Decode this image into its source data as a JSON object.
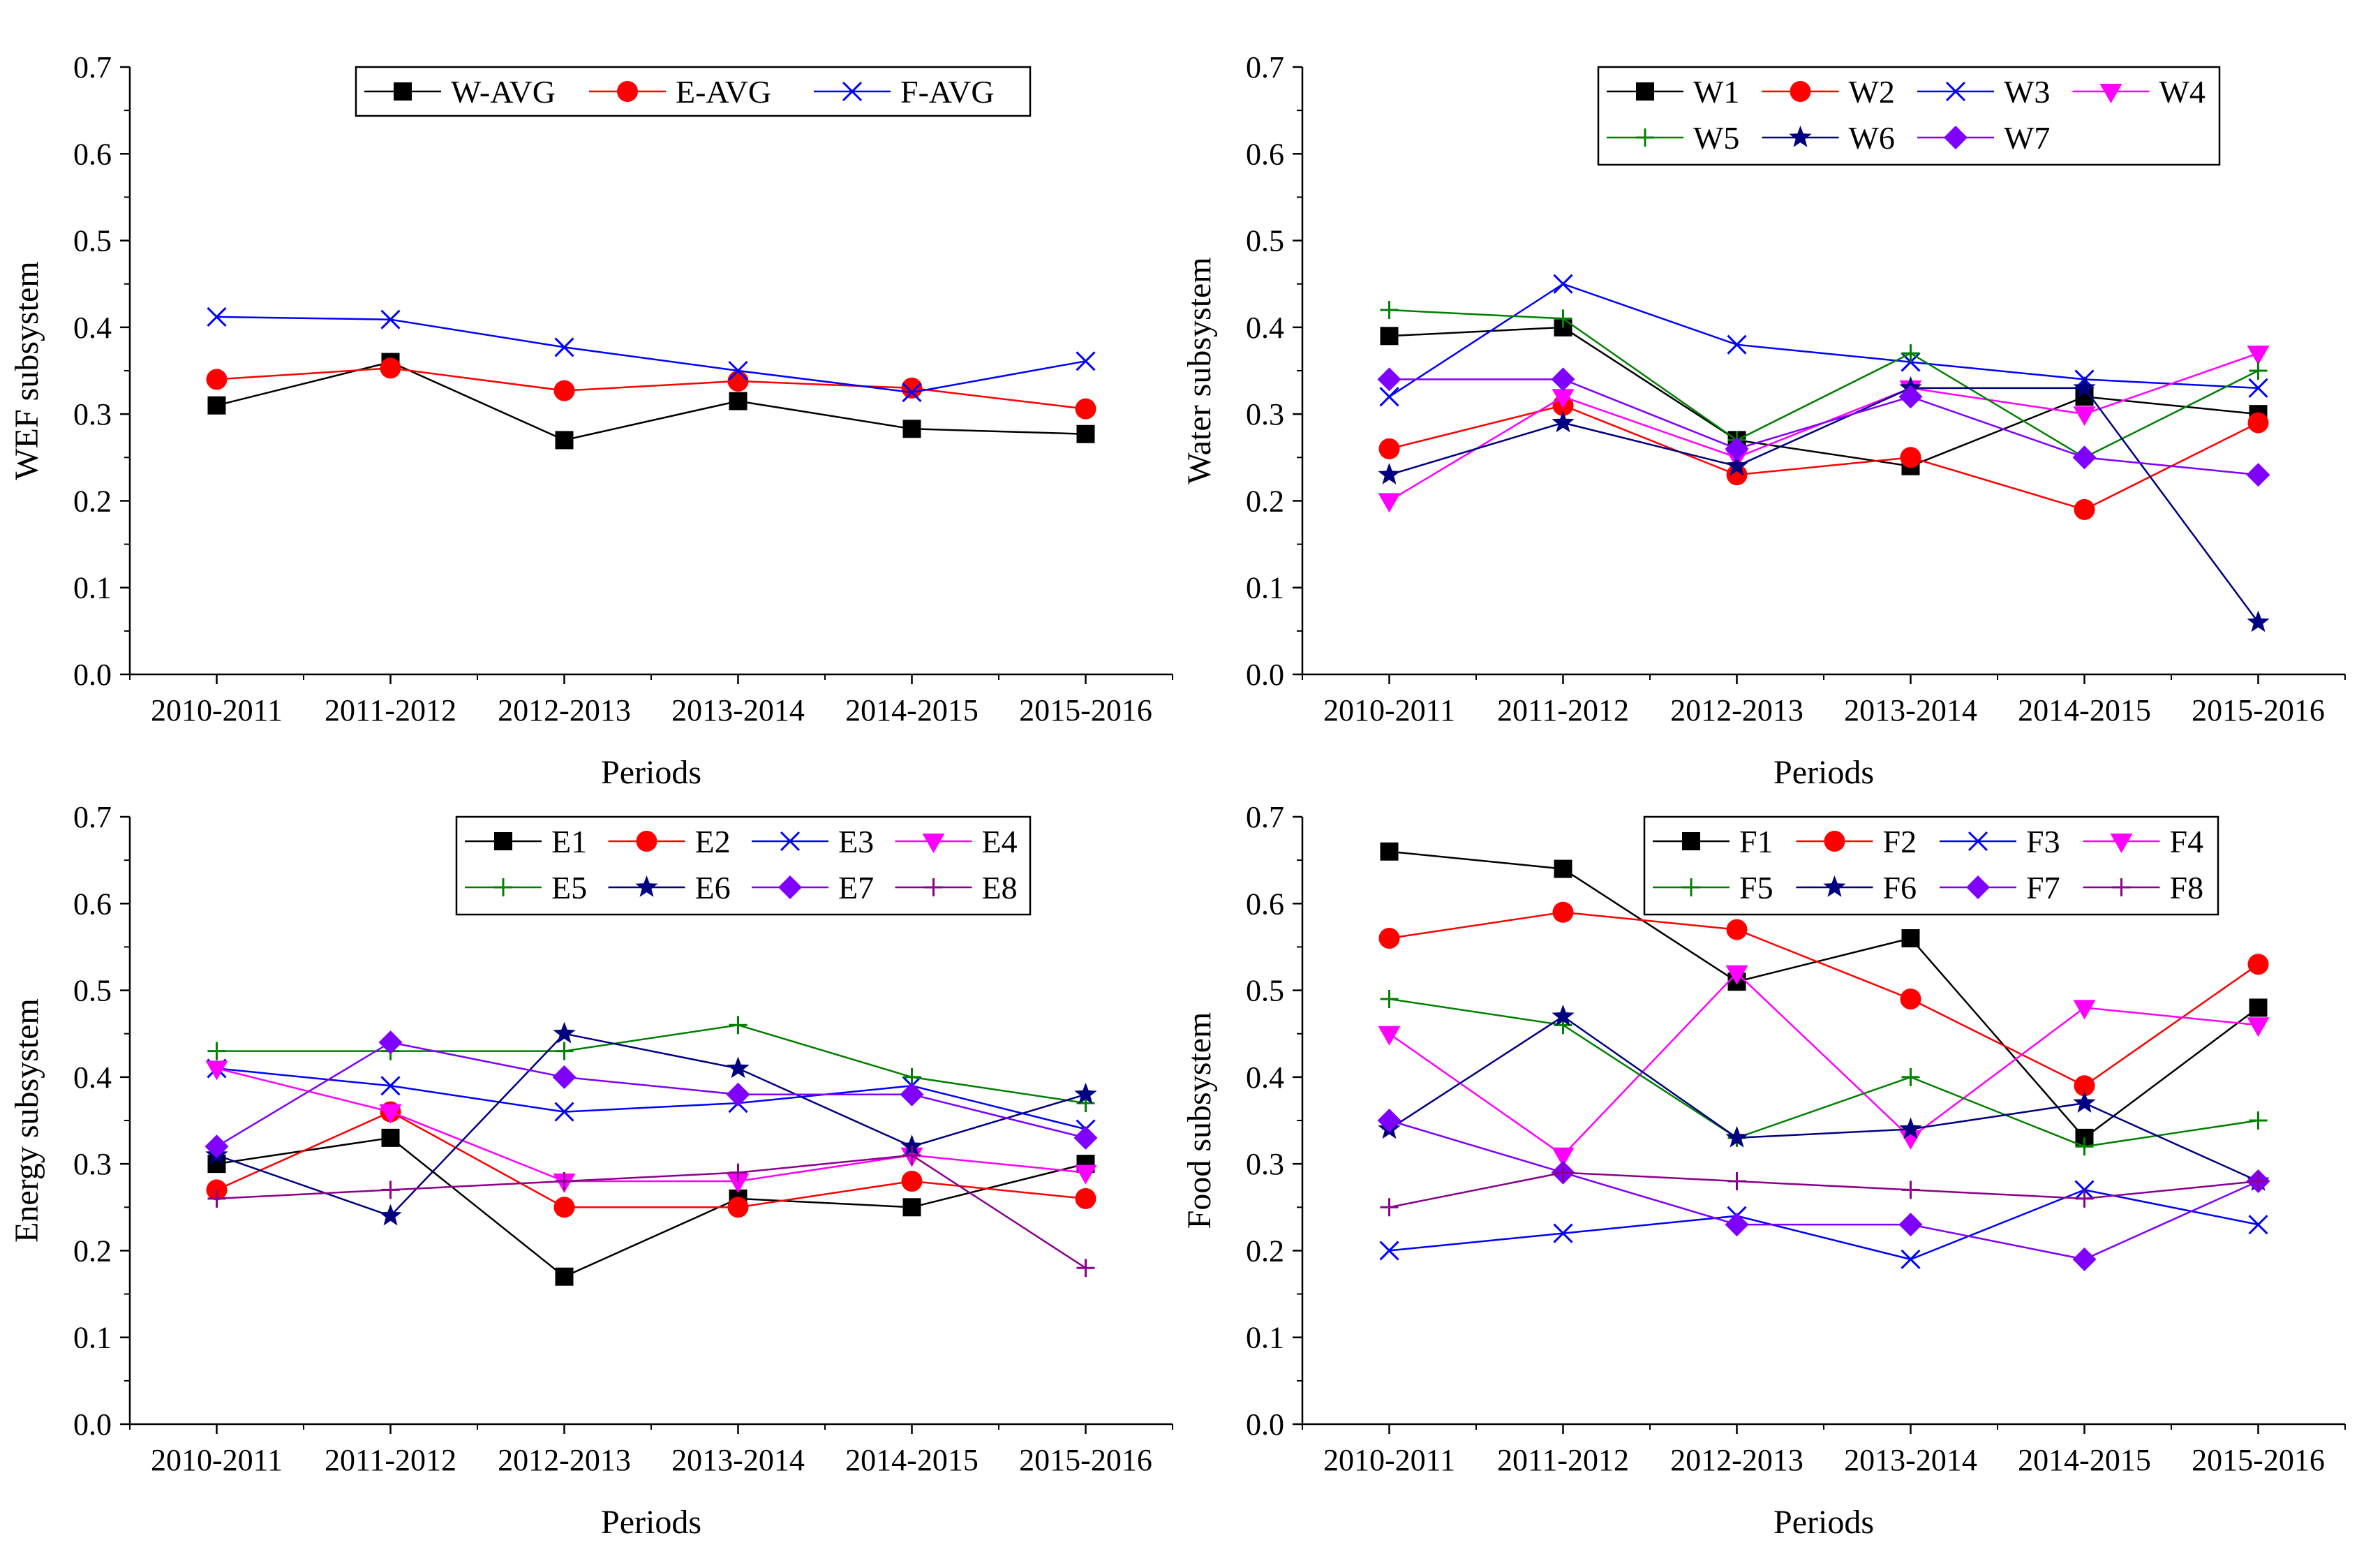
{
  "figure": {
    "colors": {
      "black": "#000000",
      "red": "#ff0000",
      "blue": "#0000ff",
      "magenta": "#ff00ff",
      "green": "#008000",
      "navy": "#000080",
      "purple": "#8000ff",
      "plum": "#8b008b"
    }
  },
  "chart_data": [
    {
      "id": "wef",
      "type": "line",
      "title": "",
      "xlabel": "Periods",
      "ylabel": "WEF subsystem",
      "categories": [
        "2010-2011",
        "2011-2012",
        "2012-2013",
        "2013-2014",
        "2014-2015",
        "2015-2016"
      ],
      "ylim": [
        0,
        0.7
      ],
      "yticks": [
        "0.0",
        "0.1",
        "0.2",
        "0.3",
        "0.4",
        "0.5",
        "0.6",
        "0.7"
      ],
      "legend_columns": 3,
      "series": [
        {
          "name": "W-AVG",
          "values": [
            0.31,
            0.36,
            0.27,
            0.315,
            0.283,
            0.277
          ],
          "color": "#000000",
          "marker": "square"
        },
        {
          "name": "E-AVG",
          "values": [
            0.34,
            0.353,
            0.327,
            0.338,
            0.33,
            0.306
          ],
          "color": "#ff0000",
          "marker": "circle"
        },
        {
          "name": "F-AVG",
          "values": [
            0.412,
            0.409,
            0.377,
            0.35,
            0.325,
            0.361
          ],
          "color": "#0000ff",
          "marker": "x"
        }
      ]
    },
    {
      "id": "water",
      "type": "line",
      "title": "",
      "xlabel": "Periods",
      "ylabel": "Water subsystem",
      "categories": [
        "2010-2011",
        "2011-2012",
        "2012-2013",
        "2013-2014",
        "2014-2015",
        "2015-2016"
      ],
      "ylim": [
        0,
        0.7
      ],
      "yticks": [
        "0.0",
        "0.1",
        "0.2",
        "0.3",
        "0.4",
        "0.5",
        "0.6",
        "0.7"
      ],
      "legend_columns": 4,
      "series": [
        {
          "name": "W1",
          "values": [
            0.39,
            0.4,
            0.27,
            0.24,
            0.32,
            0.3
          ],
          "color": "#000000",
          "marker": "square"
        },
        {
          "name": "W2",
          "values": [
            0.26,
            0.31,
            0.23,
            0.25,
            0.19,
            0.29
          ],
          "color": "#ff0000",
          "marker": "circle"
        },
        {
          "name": "W3",
          "values": [
            0.32,
            0.45,
            0.38,
            0.36,
            0.34,
            0.33
          ],
          "color": "#0000ff",
          "marker": "x"
        },
        {
          "name": "W4",
          "values": [
            0.2,
            0.32,
            0.25,
            0.33,
            0.3,
            0.37
          ],
          "color": "#ff00ff",
          "marker": "triangle-down"
        },
        {
          "name": "W5",
          "values": [
            0.42,
            0.41,
            0.27,
            0.37,
            0.25,
            0.35
          ],
          "color": "#008000",
          "marker": "plus"
        },
        {
          "name": "W6",
          "values": [
            0.23,
            0.29,
            0.24,
            0.33,
            0.33,
            0.06
          ],
          "color": "#000080",
          "marker": "star"
        },
        {
          "name": "W7",
          "values": [
            0.34,
            0.34,
            0.26,
            0.32,
            0.25,
            0.23
          ],
          "color": "#8000ff",
          "marker": "diamond"
        }
      ]
    },
    {
      "id": "energy",
      "type": "line",
      "title": "",
      "xlabel": "Periods",
      "ylabel": "Energy subsystem",
      "categories": [
        "2010-2011",
        "2011-2012",
        "2012-2013",
        "2013-2014",
        "2014-2015",
        "2015-2016"
      ],
      "ylim": [
        0,
        0.7
      ],
      "yticks": [
        "0.0",
        "0.1",
        "0.2",
        "0.3",
        "0.4",
        "0.5",
        "0.6",
        "0.7"
      ],
      "legend_columns": 4,
      "series": [
        {
          "name": "E1",
          "values": [
            0.3,
            0.33,
            0.17,
            0.26,
            0.25,
            0.3
          ],
          "color": "#000000",
          "marker": "square"
        },
        {
          "name": "E2",
          "values": [
            0.27,
            0.36,
            0.25,
            0.25,
            0.28,
            0.26
          ],
          "color": "#ff0000",
          "marker": "circle"
        },
        {
          "name": "E3",
          "values": [
            0.41,
            0.39,
            0.36,
            0.37,
            0.39,
            0.34
          ],
          "color": "#0000ff",
          "marker": "x"
        },
        {
          "name": "E4",
          "values": [
            0.41,
            0.36,
            0.28,
            0.28,
            0.31,
            0.29
          ],
          "color": "#ff00ff",
          "marker": "triangle-down"
        },
        {
          "name": "E5",
          "values": [
            0.43,
            0.43,
            0.43,
            0.46,
            0.4,
            0.37
          ],
          "color": "#008000",
          "marker": "plus"
        },
        {
          "name": "E6",
          "values": [
            0.31,
            0.24,
            0.45,
            0.41,
            0.32,
            0.38
          ],
          "color": "#000080",
          "marker": "star"
        },
        {
          "name": "E7",
          "values": [
            0.32,
            0.44,
            0.4,
            0.38,
            0.38,
            0.33
          ],
          "color": "#8000ff",
          "marker": "diamond"
        },
        {
          "name": "E8",
          "values": [
            0.26,
            0.27,
            0.28,
            0.29,
            0.31,
            0.18
          ],
          "color": "#8b008b",
          "marker": "plus"
        }
      ]
    },
    {
      "id": "food",
      "type": "line",
      "title": "",
      "xlabel": "Periods",
      "ylabel": "Food subsystem",
      "categories": [
        "2010-2011",
        "2011-2012",
        "2012-2013",
        "2013-2014",
        "2014-2015",
        "2015-2016"
      ],
      "ylim": [
        0,
        0.7
      ],
      "yticks": [
        "0.0",
        "0.1",
        "0.2",
        "0.3",
        "0.4",
        "0.5",
        "0.6",
        "0.7"
      ],
      "legend_columns": 4,
      "series": [
        {
          "name": "F1",
          "values": [
            0.66,
            0.64,
            0.51,
            0.56,
            0.33,
            0.48
          ],
          "color": "#000000",
          "marker": "square"
        },
        {
          "name": "F2",
          "values": [
            0.56,
            0.59,
            0.57,
            0.49,
            0.39,
            0.53
          ],
          "color": "#ff0000",
          "marker": "circle"
        },
        {
          "name": "F3",
          "values": [
            0.2,
            0.22,
            0.24,
            0.19,
            0.27,
            0.23
          ],
          "color": "#0000ff",
          "marker": "x"
        },
        {
          "name": "F4",
          "values": [
            0.45,
            0.31,
            0.52,
            0.33,
            0.48,
            0.46
          ],
          "color": "#ff00ff",
          "marker": "triangle-down"
        },
        {
          "name": "F5",
          "values": [
            0.49,
            0.46,
            0.33,
            0.4,
            0.32,
            0.35
          ],
          "color": "#008000",
          "marker": "plus"
        },
        {
          "name": "F6",
          "values": [
            0.34,
            0.47,
            0.33,
            0.34,
            0.37,
            0.28
          ],
          "color": "#000080",
          "marker": "star"
        },
        {
          "name": "F7",
          "values": [
            0.35,
            0.29,
            0.23,
            0.23,
            0.19,
            0.28
          ],
          "color": "#8000ff",
          "marker": "diamond"
        },
        {
          "name": "F8",
          "values": [
            0.25,
            0.29,
            0.28,
            0.27,
            0.26,
            0.28
          ],
          "color": "#8b008b",
          "marker": "plus"
        }
      ]
    }
  ]
}
